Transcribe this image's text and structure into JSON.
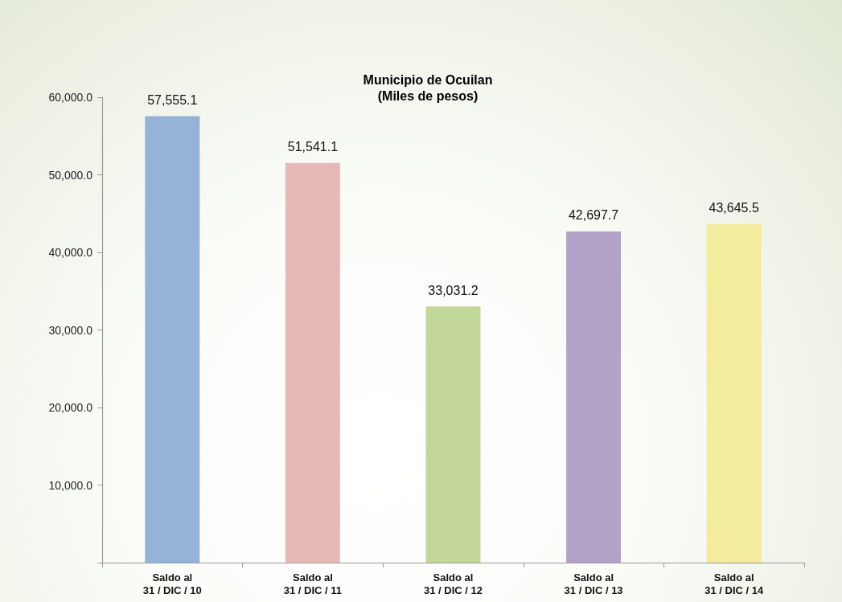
{
  "chart_data": {
    "type": "bar",
    "title": "Municipio de Ocuilan",
    "subtitle": "(Miles de pesos)",
    "categories": [
      "Saldo al\n31 / DIC / 10",
      "Saldo al\n31 / DIC / 11",
      "Saldo al\n31 / DIC / 12",
      "Saldo al\n31 / DIC / 13",
      "Saldo al\n31 / DIC / 14"
    ],
    "values": [
      57555.1,
      51541.1,
      33031.2,
      42697.7,
      43645.5
    ],
    "value_labels": [
      "57,555.1",
      "51,541.1",
      "33,031.2",
      "42,697.7",
      "43,645.5"
    ],
    "colors": [
      "#95b3d7",
      "#e6b9b8",
      "#c4d79b",
      "#b3a2c7",
      "#f2ec9c"
    ],
    "ylim": [
      0,
      60000
    ],
    "yticks": [
      {
        "value": 0,
        "label": null
      },
      {
        "value": 10000,
        "label": "10,000.0"
      },
      {
        "value": 20000,
        "label": "20,000.0"
      },
      {
        "value": 30000,
        "label": "30,000.0"
      },
      {
        "value": 40000,
        "label": "40,000.0"
      },
      {
        "value": 50000,
        "label": "50,000.0"
      },
      {
        "value": 60000,
        "label": "60,000.0"
      }
    ]
  }
}
